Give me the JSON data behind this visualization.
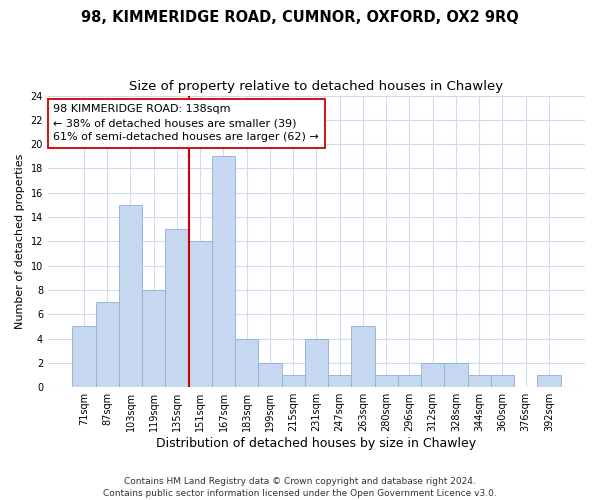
{
  "title": "98, KIMMERIDGE ROAD, CUMNOR, OXFORD, OX2 9RQ",
  "subtitle": "Size of property relative to detached houses in Chawley",
  "xlabel": "Distribution of detached houses by size in Chawley",
  "ylabel": "Number of detached properties",
  "categories": [
    "71sqm",
    "87sqm",
    "103sqm",
    "119sqm",
    "135sqm",
    "151sqm",
    "167sqm",
    "183sqm",
    "199sqm",
    "215sqm",
    "231sqm",
    "247sqm",
    "263sqm",
    "280sqm",
    "296sqm",
    "312sqm",
    "328sqm",
    "344sqm",
    "360sqm",
    "376sqm",
    "392sqm"
  ],
  "values": [
    5,
    7,
    15,
    8,
    13,
    12,
    19,
    4,
    2,
    1,
    4,
    1,
    5,
    1,
    1,
    2,
    2,
    1,
    1,
    0,
    1
  ],
  "bar_color": "#c5d8f0",
  "bar_edge_color": "#8ab0d8",
  "grid_color": "#d0dcee",
  "background_color": "#ffffff",
  "red_line_x": 4.5,
  "red_line_color": "#cc0000",
  "annotation_line1": "98 KIMMERIDGE ROAD: 138sqm",
  "annotation_line2": "← 38% of detached houses are smaller (39)",
  "annotation_line3": "61% of semi-detached houses are larger (62) →",
  "annotation_box_color": "#ffffff",
  "annotation_box_edge": "#cc0000",
  "footer": "Contains HM Land Registry data © Crown copyright and database right 2024.\nContains public sector information licensed under the Open Government Licence v3.0.",
  "ylim": [
    0,
    24
  ],
  "yticks": [
    0,
    2,
    4,
    6,
    8,
    10,
    12,
    14,
    16,
    18,
    20,
    22,
    24
  ],
  "title_fontsize": 10.5,
  "subtitle_fontsize": 9.5,
  "xlabel_fontsize": 9,
  "ylabel_fontsize": 8,
  "tick_fontsize": 7,
  "annotation_fontsize": 8,
  "footer_fontsize": 6.5
}
